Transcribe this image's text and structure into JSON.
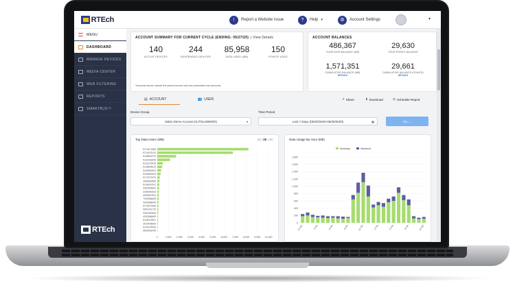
{
  "header": {
    "logo": "RTEch",
    "report_issue": "Report a Website Issue",
    "help": "Help",
    "account_settings": "Account Settings"
  },
  "sidebar": {
    "menu_label": "MENU",
    "items": [
      {
        "label": "DASHBOARD",
        "active": true
      },
      {
        "label": "MANAGE DEVICES",
        "active": false
      },
      {
        "label": "MEDIA CENTER",
        "active": false
      },
      {
        "label": "WEB FILTERING",
        "active": false
      },
      {
        "label": "REPORTS",
        "active": false
      },
      {
        "label": "SMARTBUS™",
        "active": false
      }
    ],
    "logo": "RTEch"
  },
  "summary": {
    "title": "ACCOUNT SUMMARY FOR CURRENT CYCLE (ENDING: 05/27/20)",
    "link": "| View Details",
    "stats": [
      {
        "value": "140",
        "label": "ACTIVE DEVICES"
      },
      {
        "value": "244",
        "label": "SUSPENDED DEVICES"
      },
      {
        "value": "85,958",
        "label": "DATA USED (MB)"
      },
      {
        "value": "150",
        "label": "POINTS USED"
      }
    ],
    "note": "*Amounts shown include the parent account and any associated sub accounts."
  },
  "balances": {
    "title": "ACCOUNT BALANCES",
    "items": [
      {
        "value": "486,367",
        "label": "YOUR DATA BALANCE (MB)"
      },
      {
        "value": "29,630",
        "label": "YOUR POINTS BALANCE"
      },
      {
        "value": "1,571,351",
        "label": "CUMULATIVE BALANCE (MB)",
        "link": "DETAILS"
      },
      {
        "value": "29,661",
        "label": "CUMULATIVE BALANCE (POINTS)",
        "link": "DETAILS"
      }
    ]
  },
  "tabs": {
    "account": "ACCOUNT",
    "user": "USER",
    "share": "Share",
    "download": "Download",
    "schedule": "Schedule Report"
  },
  "filters": {
    "device_group_label": "Device Group",
    "device_group_value": "Sales Demo Account (KJTSLSDEMO)",
    "time_period_label": "Time Period",
    "time_period_value": "Last 7 Days (05/20/2020-05/26/2020)",
    "go_label": "Go →"
  },
  "chart_data": [
    {
      "type": "bar",
      "title": "Top Data Users (MB)",
      "pager": {
        "options": [
          "10",
          "20",
          "40"
        ],
        "selected": "20"
      },
      "categories": [
        "5714671858",
        "5714676124",
        "5138516270",
        "5132166256",
        "5132100018",
        "5136854619",
        "5136050623",
        "5154869400",
        "5713073475",
        "2608060656",
        "5136007051",
        "4300964842",
        "2408060645",
        "6090657811",
        "7402566648",
        "4303568045",
        "5714679306",
        "9951301776",
        "2362060646",
        "4302566659",
        "5128019601",
        "3023408060",
        "5144074526",
        "5803456769"
      ],
      "values": [
        8200,
        6800,
        1700,
        1150,
        500,
        450,
        350,
        300,
        220,
        200,
        180,
        160,
        150,
        140,
        130,
        120,
        110,
        100,
        90,
        80,
        70,
        60,
        50,
        40
      ],
      "xlim": [
        0,
        10000
      ],
      "xticks": [
        "0",
        "1,000",
        "2,000",
        "3,000",
        "4,000",
        "5,000",
        "6,000",
        "7,000",
        "8,000",
        "9,000",
        "10,000"
      ],
      "color": "#a6dc6f"
    },
    {
      "type": "bar",
      "title": "Data Usage By Hour (Mb)",
      "legend": [
        "Weekday",
        "Weekend"
      ],
      "colors": {
        "weekday": "#a6dc6f",
        "weekend": "#5b5fa3"
      },
      "categories": [
        "12 AM",
        "",
        "",
        "3 AM",
        "",
        "",
        "6 AM",
        "",
        "",
        "9 AM",
        "",
        "",
        "12 PM",
        "",
        "",
        "3 PM",
        "",
        "",
        "6 PM",
        "",
        "",
        "9 PM",
        "",
        "",
        "12 AM"
      ],
      "x_tick_labels": [
        "12 AM",
        "3 AM",
        "6 AM",
        "9 AM",
        "12 PM",
        "3 PM",
        "6 PM",
        "9 PM",
        "12 AM"
      ],
      "weekday": [
        180,
        200,
        160,
        150,
        140,
        130,
        140,
        120,
        110,
        130,
        640,
        820,
        1110,
        720,
        420,
        480,
        440,
        560,
        600,
        820,
        620,
        480,
        120,
        100,
        110
      ],
      "weekend": [
        60,
        80,
        60,
        40,
        60,
        50,
        40,
        60,
        60,
        30,
        120,
        280,
        260,
        300,
        80,
        90,
        100,
        100,
        120,
        150,
        140,
        160,
        60,
        40,
        50
      ],
      "ylim": [
        0,
        1800
      ],
      "yticks": [
        "0",
        "200",
        "400",
        "600",
        "800",
        "1,000",
        "1,200",
        "1,400",
        "1,600",
        "1,800"
      ]
    }
  ]
}
